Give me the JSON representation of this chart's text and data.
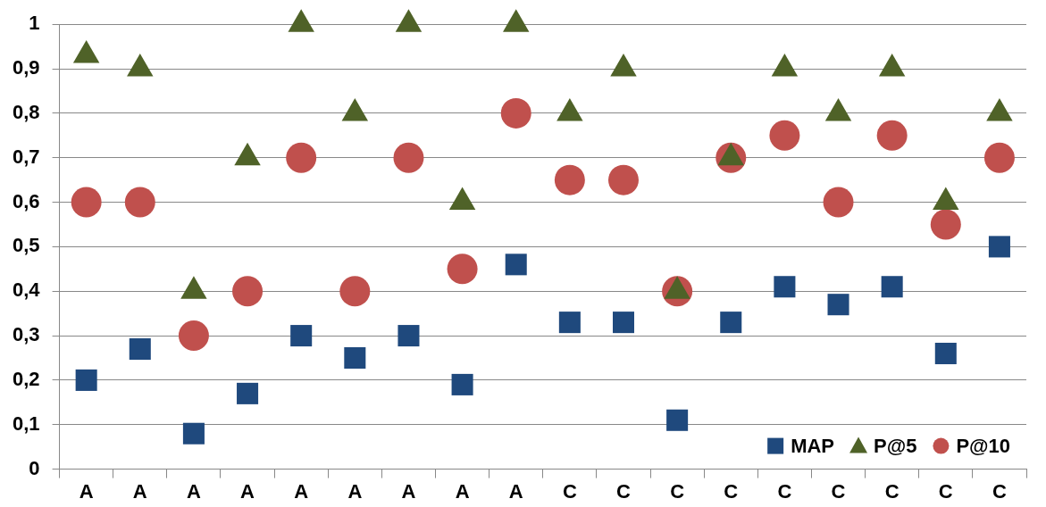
{
  "chart_data": {
    "type": "scatter",
    "categories": [
      "A",
      "A",
      "A",
      "A",
      "A",
      "A",
      "A",
      "A",
      "A",
      "C",
      "C",
      "C",
      "C",
      "C",
      "C",
      "C",
      "C",
      "C"
    ],
    "series": [
      {
        "name": "MAP",
        "color": "#1f497d",
        "marker": "square",
        "values": [
          0.2,
          0.27,
          0.08,
          0.17,
          0.3,
          0.25,
          0.3,
          0.19,
          0.46,
          0.33,
          0.33,
          0.11,
          0.33,
          0.41,
          0.37,
          0.41,
          0.26,
          0.5
        ]
      },
      {
        "name": "P@5",
        "color": "#4f6228",
        "marker": "triangle",
        "values": [
          0.93,
          0.9,
          0.4,
          0.7,
          1,
          0.8,
          1,
          0.6,
          1,
          0.8,
          0.9,
          0.4,
          0.7,
          0.9,
          0.8,
          0.9,
          0.6,
          0.8
        ]
      },
      {
        "name": "P@10",
        "color": "#c0504d",
        "marker": "circle",
        "values": [
          0.6,
          0.6,
          0.3,
          0.4,
          0.7,
          0.4,
          0.7,
          0.45,
          0.8,
          0.65,
          0.65,
          0.4,
          0.7,
          0.75,
          0.6,
          0.75,
          0.55,
          0.7
        ]
      }
    ],
    "ylim": [
      0,
      1
    ],
    "yticks": [
      0,
      {
        "value": 0.1,
        "label": "0,1"
      },
      {
        "value": 0.2,
        "label": "0,2"
      },
      {
        "value": 0.3,
        "label": "0,3"
      },
      {
        "value": 0.4,
        "label": "0,4"
      },
      {
        "value": 0.5,
        "label": "0,5"
      },
      {
        "value": 0.6,
        "label": "0,6"
      },
      {
        "value": 0.7,
        "label": "0,7"
      },
      {
        "value": 0.8,
        "label": "0,8"
      },
      {
        "value": 0.9,
        "label": "0,9"
      },
      1
    ],
    "grid": "y",
    "legend": "bottom right"
  }
}
